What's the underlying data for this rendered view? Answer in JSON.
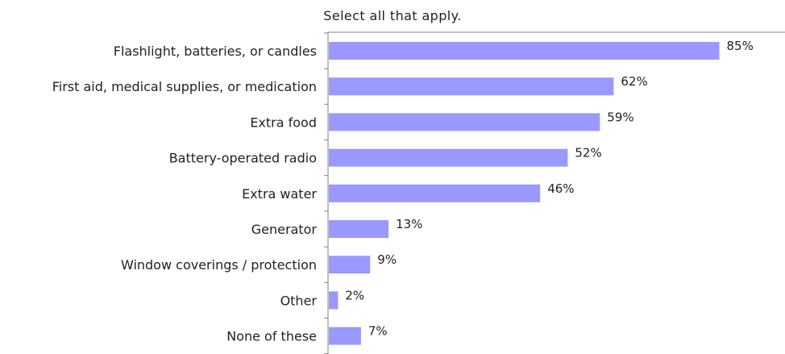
{
  "chart_data": {
    "type": "bar",
    "orientation": "horizontal",
    "subtitle": "Select all that apply.",
    "categories": [
      "Flashlight, batteries, or candles",
      "First aid, medical supplies, or medication",
      "Extra food",
      "Battery-operated radio",
      "Extra water",
      "Generator",
      "Window coverings / protection",
      "Other",
      "None of these"
    ],
    "values": [
      85,
      62,
      59,
      52,
      46,
      13,
      9,
      2,
      7
    ],
    "value_labels": [
      "85%",
      "62%",
      "59%",
      "52%",
      "46%",
      "13%",
      "9%",
      "2%",
      "7%"
    ],
    "value_unit": "%",
    "xlim": [
      0,
      100
    ],
    "grid": false,
    "legend": "none",
    "bar_color": "#9999ff"
  }
}
